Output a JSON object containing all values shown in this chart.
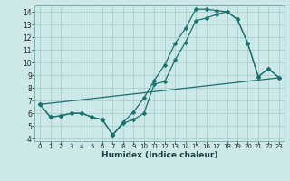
{
  "xlabel": "Humidex (Indice chaleur)",
  "bg_color": "#cce8e8",
  "line_color": "#1a7070",
  "grid_color": "#aacece",
  "xlim": [
    -0.5,
    23.5
  ],
  "ylim": [
    3.8,
    14.5
  ],
  "yticks": [
    4,
    5,
    6,
    7,
    8,
    9,
    10,
    11,
    12,
    13,
    14
  ],
  "xticks": [
    0,
    1,
    2,
    3,
    4,
    5,
    6,
    7,
    8,
    9,
    10,
    11,
    12,
    13,
    14,
    15,
    16,
    17,
    18,
    19,
    20,
    21,
    22,
    23
  ],
  "line1_x": [
    0,
    1,
    2,
    3,
    4,
    5,
    6,
    7,
    8,
    9,
    10,
    11,
    12,
    13,
    14,
    15,
    16,
    17,
    18,
    19,
    20,
    21,
    22,
    23
  ],
  "line1_y": [
    6.7,
    5.7,
    5.8,
    6.0,
    6.0,
    5.7,
    5.5,
    4.3,
    5.2,
    5.5,
    6.0,
    8.3,
    8.5,
    10.2,
    11.6,
    13.3,
    13.5,
    13.8,
    14.0,
    13.4,
    11.5,
    8.9,
    9.5,
    8.8
  ],
  "line2_x": [
    0,
    1,
    2,
    3,
    4,
    5,
    6,
    7,
    8,
    9,
    10,
    11,
    12,
    13,
    14,
    15,
    16,
    17,
    18,
    19,
    20,
    21,
    22,
    23
  ],
  "line2_y": [
    6.7,
    5.7,
    5.8,
    6.0,
    6.0,
    5.7,
    5.5,
    4.3,
    5.3,
    6.1,
    7.2,
    8.6,
    9.8,
    11.5,
    12.7,
    14.2,
    14.2,
    14.1,
    14.0,
    13.4,
    11.5,
    8.9,
    9.5,
    8.8
  ],
  "line3_x": [
    0,
    23
  ],
  "line3_y": [
    6.7,
    8.8
  ],
  "marker_style": "D",
  "marker_size": 2.5,
  "linewidth": 0.9,
  "xlabel_fontsize": 6.5,
  "tick_fontsize_x": 5.0,
  "tick_fontsize_y": 5.5
}
